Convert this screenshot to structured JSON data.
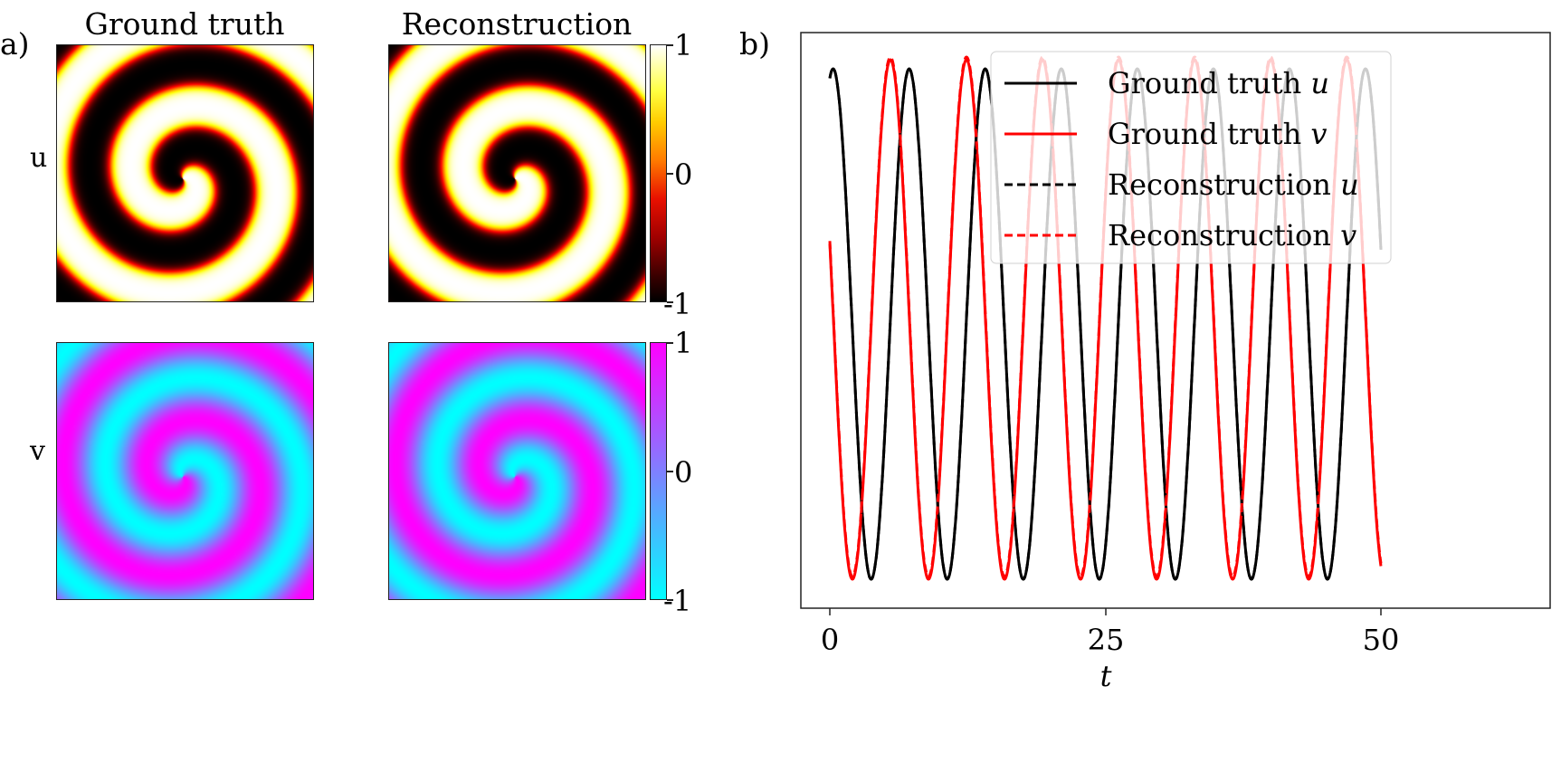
{
  "figure": {
    "panel_a_label": "a)",
    "panel_b_label": "b)"
  },
  "panel_a": {
    "column_titles": [
      "Ground truth",
      "Reconstruction"
    ],
    "row_labels": [
      "u",
      "v"
    ],
    "colorbars": [
      {
        "variable": "u",
        "colormap": "hot",
        "ticks": [
          "1",
          "0",
          "-1"
        ],
        "colors": [
          "#ffffff",
          "#ffff00",
          "#ff8000",
          "#e00000",
          "#600000",
          "#000000"
        ]
      },
      {
        "variable": "v",
        "colormap": "cool",
        "ticks": [
          "1",
          "0",
          "-1"
        ],
        "colors": [
          "#ff00ff",
          "#00ffff"
        ]
      }
    ]
  },
  "chart_data": [
    {
      "type": "heatmap",
      "title": "Ground truth",
      "row": "u",
      "description": "Two-armed spiral wave, hot colormap",
      "vmin": -1,
      "vmax": 1
    },
    {
      "type": "heatmap",
      "title": "Reconstruction",
      "row": "u",
      "description": "Two-armed spiral wave, hot colormap, nearly identical to ground truth",
      "vmin": -1,
      "vmax": 1
    },
    {
      "type": "heatmap",
      "title": "Ground truth",
      "row": "v",
      "description": "Spiral wave, cool colormap (cyan to magenta)",
      "vmin": -1,
      "vmax": 1
    },
    {
      "type": "heatmap",
      "title": "Reconstruction",
      "row": "v",
      "description": "Spiral wave, cool colormap, nearly identical to ground truth",
      "vmin": -1,
      "vmax": 1
    },
    {
      "type": "line",
      "title": "",
      "xlabel": "t",
      "ylabel": "",
      "xlim": [
        -2.6,
        52.5
      ],
      "xticks": [
        "0",
        "25",
        "50"
      ],
      "yticks": [],
      "grid": false,
      "legend_position": "upper right",
      "period": 6.9,
      "series": [
        {
          "name": "Ground truth u",
          "color": "#000000",
          "style": "solid",
          "phase_peak_t": 0.3,
          "peaks_t": [
            0.3,
            7.2,
            14.1,
            21.0,
            27.9,
            34.8,
            41.7,
            48.6
          ],
          "troughs_t": [
            3.75,
            10.65,
            17.55,
            24.45,
            31.35,
            38.25,
            45.15
          ],
          "value_at_t0": 0.97,
          "value_at_t50": 0.55
        },
        {
          "name": "Ground truth v",
          "color": "#ff0000",
          "style": "solid",
          "phase_peak_t": 5.5,
          "peaks_t": [
            5.5,
            12.4,
            19.3,
            26.2,
            33.1,
            40.0,
            46.9
          ],
          "troughs_t": [
            2.05,
            8.95,
            15.85,
            22.75,
            29.65,
            36.55,
            43.45
          ],
          "value_at_t0": 0.22,
          "value_at_t50": -0.71
        },
        {
          "name": "Reconstruction u",
          "color": "#000000",
          "style": "dashed",
          "note": "overlaps ground truth u"
        },
        {
          "name": "Reconstruction v",
          "color": "#ff0000",
          "style": "dashed",
          "note": "overlaps ground truth v, slightly higher peaks"
        }
      ]
    }
  ],
  "panel_b": {
    "legend": [
      {
        "label": "Ground truth ",
        "var": "u",
        "color": "#000000",
        "dash": ""
      },
      {
        "label": "Ground truth ",
        "var": "v",
        "color": "#ff0000",
        "dash": ""
      },
      {
        "label": "Reconstruction ",
        "var": "u",
        "color": "#000000",
        "dash": "9,5"
      },
      {
        "label": "Reconstruction ",
        "var": "v",
        "color": "#ff0000",
        "dash": "9,5"
      }
    ],
    "xticks": [
      "0",
      "25",
      "50"
    ],
    "xlabel": "t"
  }
}
